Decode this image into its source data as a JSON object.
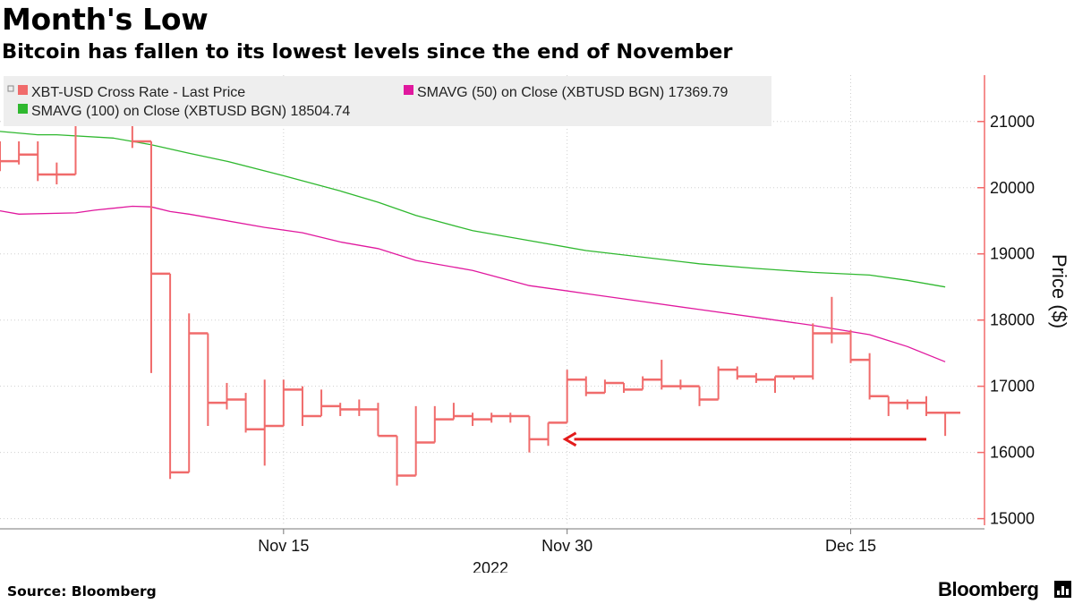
{
  "title": "Month's Low",
  "subtitle": "Bitcoin has fallen to its lowest levels since the end of November",
  "source": "Source: Bloomberg",
  "brand": "Bloomberg",
  "legend": {
    "items": [
      {
        "label": "XBT-USD Cross Rate - Last Price",
        "color": "#f06b6b"
      },
      {
        "label": "SMAVG (50)  on Close (XBTUSD BGN) 17369.79",
        "color": "#e0189e"
      },
      {
        "label": "SMAVG (100)  on Close (XBTUSD BGN) 18504.74",
        "color": "#2fb82f"
      }
    ]
  },
  "chart_data": {
    "type": "line",
    "ylabel": "Price ($)",
    "ylim": [
      14900,
      21700
    ],
    "yticks": [
      15000,
      16000,
      17000,
      18000,
      19000,
      20000,
      21000
    ],
    "xticks": [
      {
        "x": 15,
        "label": "Nov 15"
      },
      {
        "x": 30,
        "label": "Nov 30"
      },
      {
        "x": 45,
        "label": "Dec 15"
      }
    ],
    "xlabel": "2022",
    "xlim": [
      0,
      50.8
    ],
    "grid": true,
    "colors": {
      "price": "#f06b6b",
      "sma50": "#e0189e",
      "sma100": "#2fb82f",
      "arrow": "#e31b1b"
    },
    "ohlc": [
      [
        20400,
        20700,
        20250,
        20400
      ],
      [
        20500,
        20700,
        20350,
        20500
      ],
      [
        20200,
        20700,
        20100,
        20200
      ],
      [
        20200,
        20380,
        20050,
        20200
      ],
      [
        21150,
        21300,
        20200,
        21150
      ],
      [
        21350,
        21370,
        21100,
        21350
      ],
      [
        21150,
        21300,
        20950,
        21150
      ],
      [
        20700,
        20700,
        20600,
        20700
      ],
      [
        18700,
        20700,
        17200,
        18700
      ],
      [
        15700,
        18700,
        15600,
        15700
      ],
      [
        17800,
        18100,
        15700,
        17800
      ],
      [
        16750,
        17800,
        16400,
        16750
      ],
      [
        16800,
        17050,
        16650,
        16800
      ],
      [
        16350,
        16900,
        16300,
        16350
      ],
      [
        16400,
        17100,
        15800,
        16400
      ],
      [
        16950,
        17100,
        16400,
        16950
      ],
      [
        16550,
        17000,
        16400,
        16550
      ],
      [
        16700,
        16950,
        16550,
        16700
      ],
      [
        16650,
        16750,
        16550,
        16650
      ],
      [
        16650,
        16800,
        16550,
        16650
      ],
      [
        16250,
        16750,
        16250,
        16250
      ],
      [
        15650,
        16250,
        15500,
        15650
      ],
      [
        16150,
        16700,
        15650,
        16150
      ],
      [
        16500,
        16700,
        16150,
        16500
      ],
      [
        16550,
        16750,
        16500,
        16550
      ],
      [
        16500,
        16600,
        16400,
        16500
      ],
      [
        16550,
        16600,
        16450,
        16550
      ],
      [
        16550,
        16600,
        16450,
        16550
      ],
      [
        16200,
        16550,
        16000,
        16200
      ],
      [
        16450,
        16450,
        16100,
        16450
      ],
      [
        17100,
        17250,
        16450,
        17100
      ],
      [
        16900,
        17150,
        16850,
        16900
      ],
      [
        17050,
        17100,
        16900,
        17050
      ],
      [
        16950,
        17050,
        16900,
        16950
      ],
      [
        17100,
        17150,
        16950,
        17100
      ],
      [
        17000,
        17400,
        16950,
        17000
      ],
      [
        17000,
        17100,
        16950,
        17000
      ],
      [
        16800,
        17000,
        16700,
        16800
      ],
      [
        17250,
        17300,
        16800,
        17250
      ],
      [
        17150,
        17300,
        17100,
        17150
      ],
      [
        17100,
        17200,
        17050,
        17100
      ],
      [
        17150,
        17150,
        16900,
        17150
      ],
      [
        17150,
        17150,
        17100,
        17150
      ],
      [
        17800,
        17950,
        17100,
        17800
      ],
      [
        17800,
        18350,
        17650,
        17800
      ],
      [
        17400,
        17850,
        17350,
        17400
      ],
      [
        16850,
        17500,
        16800,
        16850
      ],
      [
        16750,
        16850,
        16550,
        16750
      ],
      [
        16750,
        16800,
        16650,
        16750
      ],
      [
        16600,
        16850,
        16550,
        16600
      ]
    ],
    "last": [
      16600,
      16600,
      16250,
      16600
    ],
    "sma50": [
      [
        0,
        19650
      ],
      [
        1,
        19600
      ],
      [
        4,
        19620
      ],
      [
        5,
        19660
      ],
      [
        7,
        19720
      ],
      [
        8,
        19710
      ],
      [
        9,
        19640
      ],
      [
        10,
        19600
      ],
      [
        14,
        19400
      ],
      [
        16,
        19320
      ],
      [
        18,
        19180
      ],
      [
        20,
        19080
      ],
      [
        22,
        18900
      ],
      [
        25,
        18750
      ],
      [
        28,
        18520
      ],
      [
        31,
        18400
      ],
      [
        34,
        18280
      ],
      [
        37,
        18160
      ],
      [
        40,
        18040
      ],
      [
        43,
        17920
      ],
      [
        46,
        17780
      ],
      [
        48,
        17600
      ],
      [
        50,
        17370
      ]
    ],
    "sma100": [
      [
        0,
        20850
      ],
      [
        2,
        20800
      ],
      [
        3,
        20800
      ],
      [
        6,
        20750
      ],
      [
        8,
        20650
      ],
      [
        10,
        20520
      ],
      [
        12,
        20400
      ],
      [
        15,
        20180
      ],
      [
        18,
        19950
      ],
      [
        20,
        19780
      ],
      [
        22,
        19580
      ],
      [
        25,
        19350
      ],
      [
        28,
        19200
      ],
      [
        31,
        19050
      ],
      [
        34,
        18950
      ],
      [
        37,
        18850
      ],
      [
        40,
        18780
      ],
      [
        43,
        18720
      ],
      [
        46,
        18680
      ],
      [
        48,
        18600
      ],
      [
        50,
        18500
      ]
    ],
    "arrow": {
      "from_x": 49,
      "to_x": 29.9,
      "y": 16200
    }
  }
}
